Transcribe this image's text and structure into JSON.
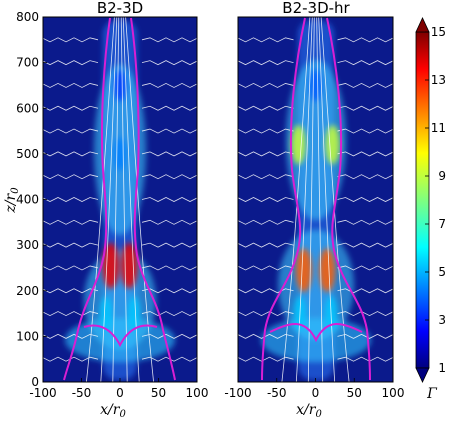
{
  "chart_data": [
    {
      "type": "heatmap",
      "title": "B2-3D",
      "xlabel": "x/r",
      "xlabel_sub": "0",
      "ylabel": "z/r",
      "ylabel_sub": "0",
      "xlim": [
        -100,
        100
      ],
      "ylim": [
        0,
        800
      ],
      "xticks": [
        -100,
        -50,
        0,
        50,
        100
      ],
      "yticks": [
        0,
        100,
        200,
        300,
        400,
        500,
        600,
        700,
        800
      ],
      "peaks": [
        {
          "x": -12,
          "z": 255,
          "gamma": 13.5
        },
        {
          "x": 12,
          "z": 255,
          "gamma": 13.5
        },
        {
          "x": -18,
          "z": 150,
          "gamma": 5.5
        },
        {
          "x": 18,
          "z": 150,
          "gamma": 5.5
        },
        {
          "x": 0,
          "z": 500,
          "gamma": 4.5
        },
        {
          "x": 0,
          "z": 650,
          "gamma": 3.5
        }
      ],
      "boundary_color": "#d81fd3",
      "streamline_color": "#ffffff"
    },
    {
      "type": "heatmap",
      "title": "B2-3D-hr",
      "xlabel": "x/r",
      "xlabel_sub": "0",
      "xlim": [
        -100,
        100
      ],
      "ylim": [
        0,
        800
      ],
      "xticks": [
        -100,
        -50,
        0,
        50,
        100
      ],
      "peaks": [
        {
          "x": -15,
          "z": 245,
          "gamma": 12
        },
        {
          "x": 15,
          "z": 245,
          "gamma": 12
        },
        {
          "x": -20,
          "z": 150,
          "gamma": 5.5
        },
        {
          "x": 20,
          "z": 150,
          "gamma": 5.5
        },
        {
          "x": -22,
          "z": 520,
          "gamma": 9
        },
        {
          "x": 22,
          "z": 520,
          "gamma": 9
        },
        {
          "x": 0,
          "z": 650,
          "gamma": 4
        }
      ],
      "boundary_color": "#d81fd3",
      "streamline_color": "#ffffff"
    }
  ],
  "colorbar": {
    "label": "Γ",
    "min": 1,
    "max": 15,
    "ticks": [
      "1",
      "3",
      "5",
      "7",
      "9",
      "11",
      "13",
      "15"
    ],
    "colormap": "jet"
  }
}
